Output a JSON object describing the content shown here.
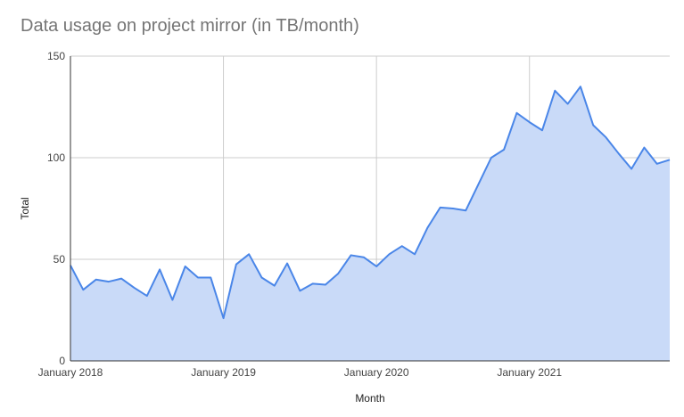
{
  "chart_data": {
    "type": "area",
    "title": "Data usage on project mirror (in TB/month)",
    "xlabel": "Month",
    "ylabel": "Total",
    "ylim": [
      0,
      150
    ],
    "yticks": [
      "0",
      "50",
      "100",
      "150"
    ],
    "xticks": [
      {
        "label": "January 2018",
        "index": 0
      },
      {
        "label": "January 2019",
        "index": 12
      },
      {
        "label": "January 2020",
        "index": 24
      },
      {
        "label": "January 2021",
        "index": 36
      }
    ],
    "grid": true,
    "legend": "none",
    "series": [
      {
        "color": "#4a86e8",
        "fill": "#c9daf8",
        "x": [
          "2018-01",
          "2018-02",
          "2018-03",
          "2018-04",
          "2018-05",
          "2018-06",
          "2018-07",
          "2018-08",
          "2018-09",
          "2018-10",
          "2018-11",
          "2018-12",
          "2019-01",
          "2019-02",
          "2019-03",
          "2019-04",
          "2019-05",
          "2019-06",
          "2019-07",
          "2019-08",
          "2019-09",
          "2019-10",
          "2019-11",
          "2019-12",
          "2020-01",
          "2020-02",
          "2020-03",
          "2020-04",
          "2020-05",
          "2020-06",
          "2020-07",
          "2020-08",
          "2020-09",
          "2020-10",
          "2020-11",
          "2020-12",
          "2021-01",
          "2021-02",
          "2021-03",
          "2021-04",
          "2021-05",
          "2021-06",
          "2021-07",
          "2021-08",
          "2021-09",
          "2021-10",
          "2021-11",
          "2021-12"
        ],
        "values": [
          47,
          35,
          40,
          39,
          40.5,
          36,
          32,
          45,
          30,
          46.5,
          41,
          41,
          21,
          47.5,
          52.5,
          41,
          37,
          48,
          34.5,
          38,
          37.5,
          43,
          52,
          51,
          46.5,
          52.5,
          56.5,
          52.5,
          65.5,
          75.5,
          75,
          74,
          87,
          100,
          104,
          122,
          117.5,
          113.5,
          133,
          126.5,
          135,
          116,
          110,
          102,
          94.5,
          105,
          97,
          99
        ]
      }
    ]
  }
}
